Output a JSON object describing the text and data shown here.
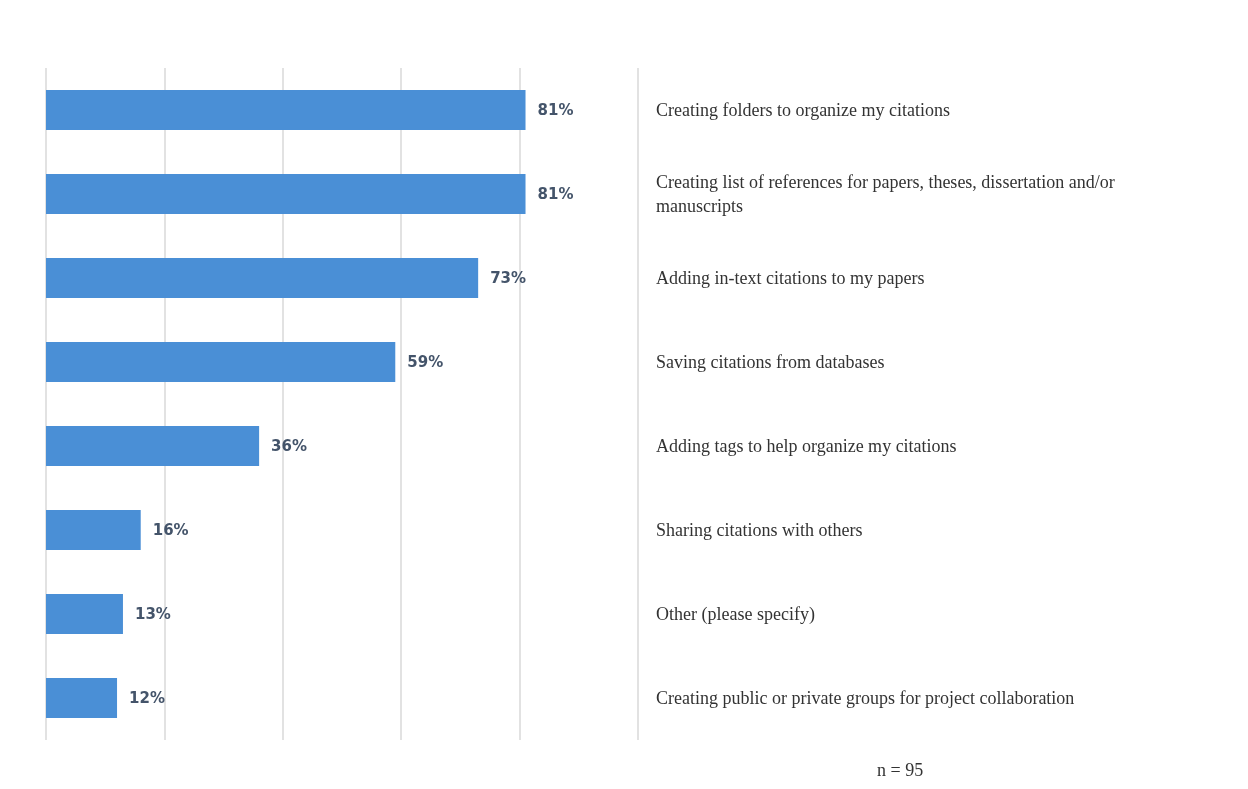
{
  "chart_data": {
    "type": "bar",
    "orientation": "horizontal",
    "categories": [
      "Creating folders to organize my citations",
      "Creating list of references for papers, theses, dissertation and/or manuscripts",
      "Adding in-text citations to my papers",
      "Saving citations from databases",
      "Adding tags to help organize my citations",
      "Sharing citations with others",
      "Other (please specify)",
      "Creating public or private groups for project collaboration"
    ],
    "values": [
      81,
      81,
      73,
      59,
      36,
      16,
      13,
      12
    ],
    "value_labels": [
      "81%",
      "81%",
      "73%",
      "59%",
      "36%",
      "16%",
      "13%",
      "12%"
    ],
    "color": "#4a8fd6",
    "xlim": [
      0,
      100
    ],
    "xticks": [
      {
        "value": 0,
        "label": null
      },
      {
        "value": 20,
        "label": null
      },
      {
        "value": 40,
        "label": null
      },
      {
        "value": 60,
        "label": null
      },
      {
        "value": 80,
        "label": null
      },
      {
        "value": 100,
        "label": null
      }
    ],
    "tick_labels": "y",
    "grid": "x",
    "annotations": [
      "n = 95"
    ]
  }
}
